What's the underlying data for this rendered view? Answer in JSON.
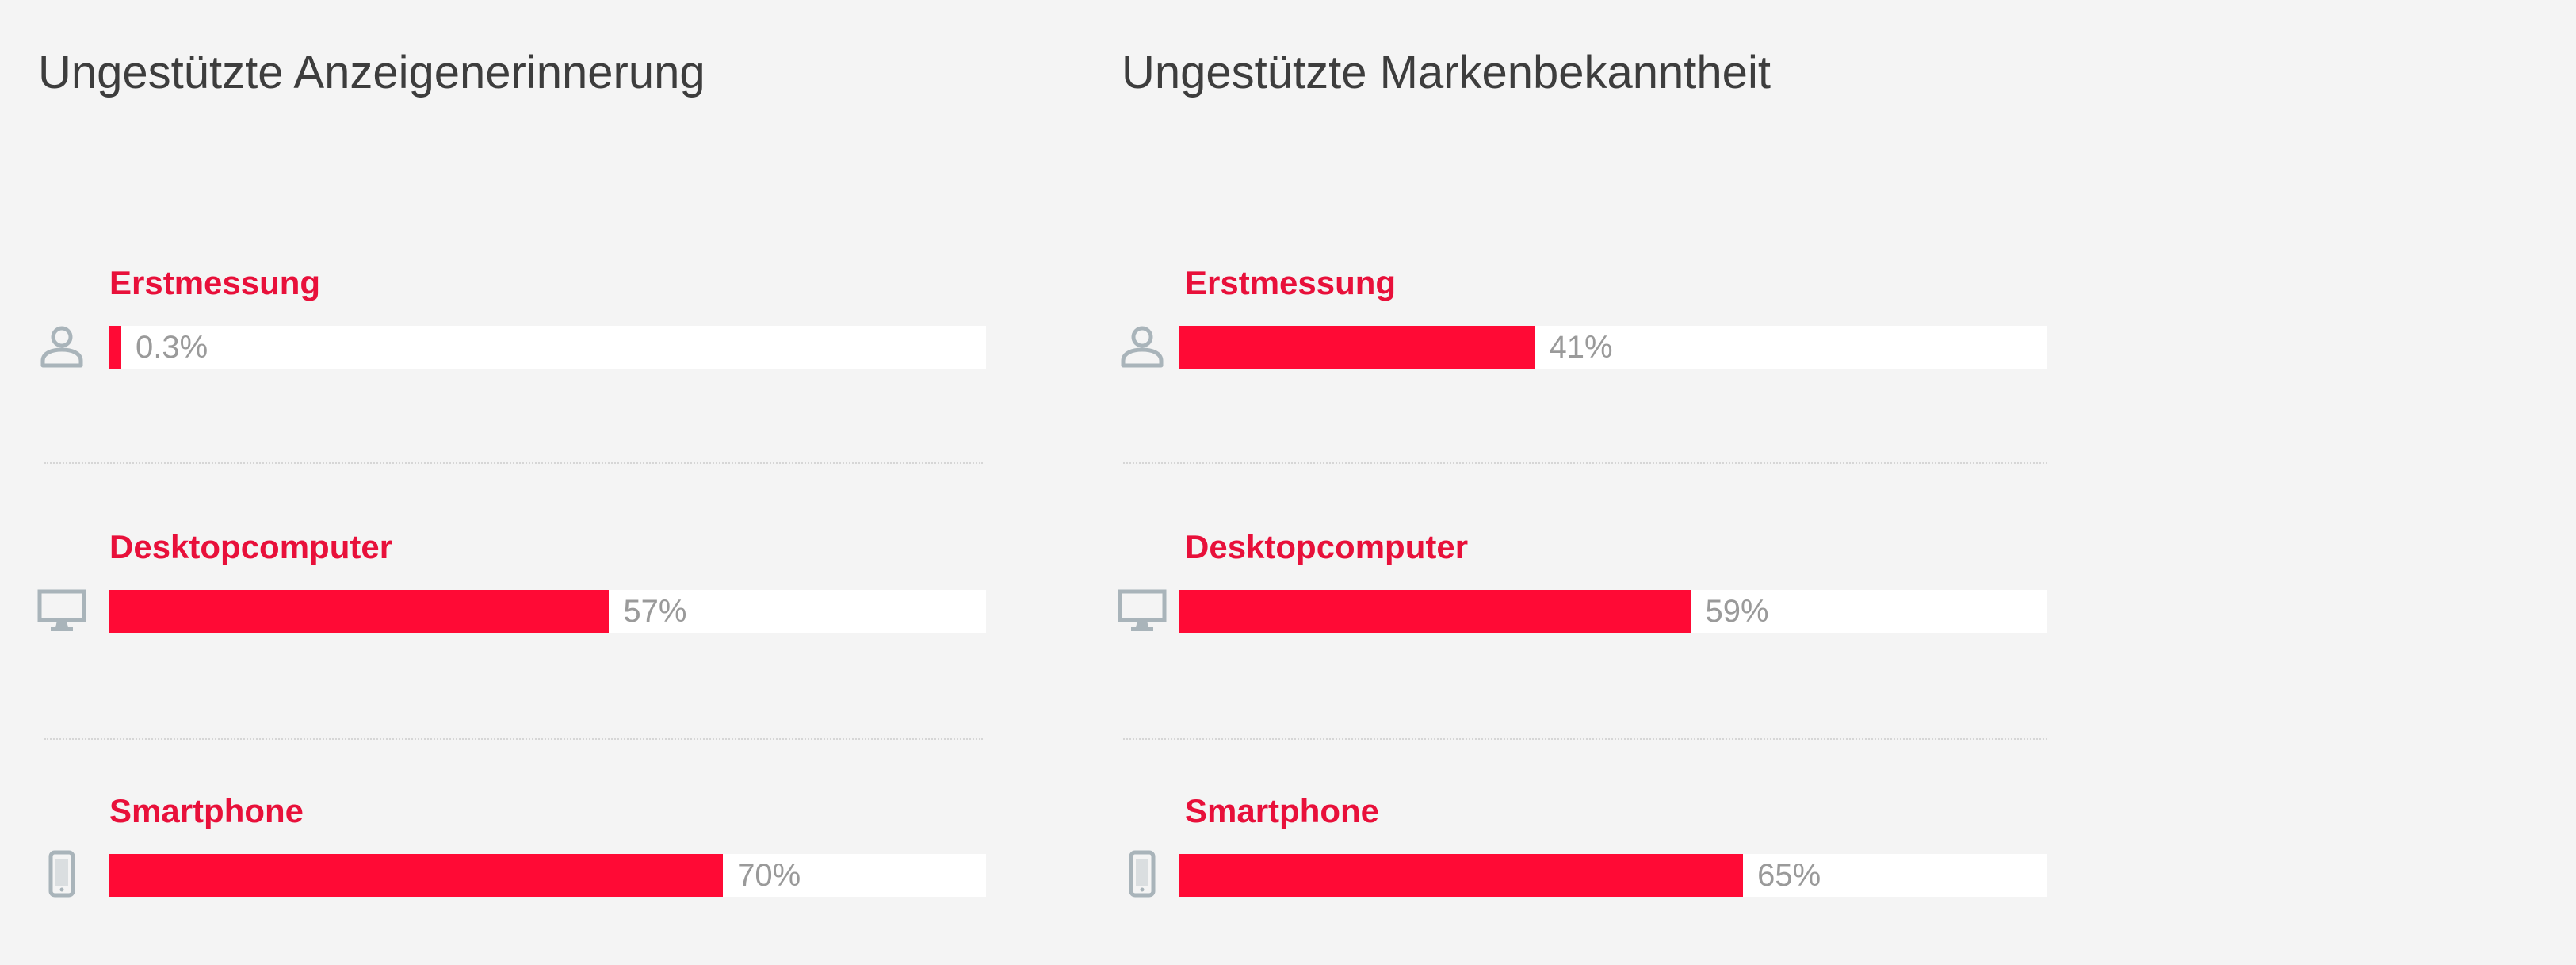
{
  "colors": {
    "background": "#f4f4f4",
    "bar_fill": "#ff0a35",
    "bar_track": "#ffffff",
    "label": "#e8103a",
    "value_text": "#9a9a9a",
    "title_text": "#3d3d3d",
    "icon": "#a9b4ba"
  },
  "chart_data": [
    {
      "type": "bar",
      "orientation": "horizontal",
      "title": "Ungestützte Anzeigenerinnerung",
      "xlim": [
        0,
        100
      ],
      "rows": [
        {
          "label": "Erstmessung",
          "icon": "person-icon",
          "value": 0.3,
          "value_label": "0.3%"
        },
        {
          "label": "Desktopcomputer",
          "icon": "desktop-icon",
          "value": 57,
          "value_label": "57%"
        },
        {
          "label": "Smartphone",
          "icon": "smartphone-icon",
          "value": 70,
          "value_label": "70%"
        }
      ]
    },
    {
      "type": "bar",
      "orientation": "horizontal",
      "title": "Ungestützte Markenbekanntheit",
      "xlim": [
        0,
        100
      ],
      "rows": [
        {
          "label": "Erstmessung",
          "icon": "person-icon",
          "value": 41,
          "value_label": "41%"
        },
        {
          "label": "Desktopcomputer",
          "icon": "desktop-icon",
          "value": 59,
          "value_label": "59%"
        },
        {
          "label": "Smartphone",
          "icon": "smartphone-icon",
          "value": 65,
          "value_label": "65%"
        }
      ]
    }
  ]
}
